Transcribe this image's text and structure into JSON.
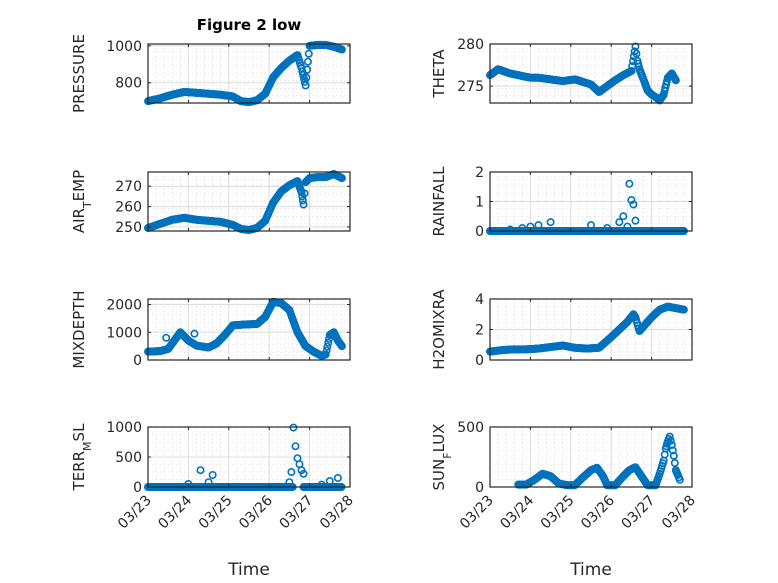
{
  "figure": {
    "title": "Figure 2 low",
    "marker_color": "#0072BD",
    "axis_color": "#262626",
    "grid_color": "#dcdcdc"
  },
  "chart_data": [
    {
      "type": "scatter",
      "id": "pressure",
      "title": "Figure 2 low",
      "ylabel": "PRESSURE",
      "ylabel_parts": [
        {
          "t": "PRESSURE"
        }
      ],
      "xlabel": "",
      "xlim": [
        0,
        5
      ],
      "ylim": [
        690,
        1010
      ],
      "yticks": [
        800,
        1000
      ],
      "xticks": [
        0,
        1,
        2,
        3,
        4,
        5
      ],
      "xticklabels": [],
      "grid": true,
      "minor_grid": true,
      "x": [
        0.0,
        0.3,
        0.6,
        0.9,
        1.2,
        1.5,
        1.8,
        2.1,
        2.3,
        2.5,
        2.7,
        2.9,
        3.1,
        3.3,
        3.5,
        3.7,
        3.8,
        3.9,
        4.0,
        4.2,
        4.4,
        4.6,
        4.8
      ],
      "y": [
        700,
        715,
        735,
        750,
        745,
        740,
        735,
        725,
        700,
        695,
        705,
        740,
        830,
        880,
        920,
        950,
        880,
        785,
        1000,
        1005,
        1005,
        995,
        980
      ],
      "data_range_days": [
        0.7,
        4.8
      ]
    },
    {
      "type": "scatter",
      "id": "theta",
      "ylabel": "THETA",
      "ylabel_parts": [
        {
          "t": "THETA"
        }
      ],
      "xlim": [
        0,
        5
      ],
      "ylim": [
        273,
        280
      ],
      "yticks": [
        275,
        280
      ],
      "xticks": [
        0,
        1,
        2,
        3,
        4,
        5
      ],
      "xticklabels": [],
      "grid": true,
      "minor_grid": true,
      "x": [
        0.0,
        0.2,
        0.5,
        0.8,
        1.0,
        1.2,
        1.5,
        1.8,
        2.1,
        2.3,
        2.5,
        2.7,
        2.9,
        3.1,
        3.3,
        3.5,
        3.6,
        3.65,
        3.7,
        3.8,
        3.9,
        4.0,
        4.1,
        4.2,
        4.3,
        4.4,
        4.5,
        4.6
      ],
      "y": [
        276.3,
        277.0,
        276.5,
        276.2,
        276.0,
        276.0,
        275.8,
        275.6,
        275.8,
        275.5,
        275.2,
        274.3,
        275.0,
        275.7,
        276.3,
        276.8,
        279.7,
        278.0,
        277.0,
        275.8,
        274.5,
        274.0,
        273.7,
        273.3,
        274.0,
        276.0,
        276.5,
        275.7
      ]
    },
    {
      "type": "scatter",
      "id": "air_temp",
      "ylabel": "AIR_TEMP",
      "ylabel_parts": [
        {
          "t": "AIR"
        },
        {
          "t": "T",
          "sub": true
        },
        {
          "t": "EMP"
        }
      ],
      "xlim": [
        0,
        5
      ],
      "ylim": [
        248,
        277
      ],
      "yticks": [
        250,
        260,
        270
      ],
      "xticks": [
        0,
        1,
        2,
        3,
        4,
        5
      ],
      "xticklabels": [],
      "grid": true,
      "minor_grid": true,
      "x": [
        0.0,
        0.3,
        0.6,
        0.9,
        1.2,
        1.5,
        1.8,
        2.1,
        2.3,
        2.5,
        2.7,
        2.9,
        3.1,
        3.3,
        3.5,
        3.7,
        3.8,
        3.85,
        3.9,
        4.0,
        4.2,
        4.4,
        4.6,
        4.8
      ],
      "y": [
        249.5,
        251.5,
        253.5,
        254.5,
        253.5,
        253.0,
        252.5,
        251.0,
        249.0,
        248.5,
        249.5,
        253.0,
        262.0,
        267.5,
        270.5,
        272.5,
        267.0,
        261.0,
        272.0,
        274.0,
        274.5,
        274.5,
        276.0,
        274.0
      ]
    },
    {
      "type": "scatter",
      "id": "rainfall",
      "ylabel": "RAINFALL",
      "ylabel_parts": [
        {
          "t": "RAINFALL"
        }
      ],
      "xlim": [
        0,
        5
      ],
      "ylim": [
        0,
        2
      ],
      "yticks": [
        0,
        1,
        2
      ],
      "xticks": [
        0,
        1,
        2,
        3,
        4,
        5
      ],
      "xticklabels": [],
      "grid": true,
      "minor_grid": true,
      "x": [
        0.5,
        0.8,
        1.0,
        1.2,
        1.5,
        2.5,
        2.9,
        3.2,
        3.3,
        3.4,
        3.45,
        3.5,
        3.55,
        3.6
      ],
      "y": [
        0.05,
        0.1,
        0.15,
        0.2,
        0.3,
        0.2,
        0.1,
        0.3,
        0.5,
        0.15,
        1.6,
        1.05,
        0.9,
        0.35
      ],
      "baseline_value": 0
    },
    {
      "type": "scatter",
      "id": "mixdepth",
      "ylabel": "MIXDEPTH",
      "ylabel_parts": [
        {
          "t": "MIXDEPTH"
        }
      ],
      "xlim": [
        0,
        5
      ],
      "ylim": [
        0,
        2200
      ],
      "yticks": [
        0,
        1000,
        2000
      ],
      "xticks": [
        0,
        1,
        2,
        3,
        4,
        5
      ],
      "xticklabels": [],
      "grid": true,
      "minor_grid": true,
      "x": [
        0.0,
        0.3,
        0.5,
        0.8,
        1.0,
        1.2,
        1.5,
        1.7,
        1.9,
        2.1,
        2.4,
        2.7,
        2.9,
        3.1,
        3.3,
        3.5,
        3.7,
        3.9,
        4.1,
        4.3,
        4.4,
        4.5,
        4.6,
        4.7,
        4.8
      ],
      "y": [
        300,
        320,
        400,
        1000,
        700,
        520,
        450,
        600,
        900,
        1250,
        1280,
        1300,
        1550,
        2100,
        2050,
        1800,
        1000,
        500,
        300,
        150,
        200,
        900,
        1000,
        700,
        500
      ],
      "outliers": [
        [
          0.45,
          800
        ],
        [
          1.15,
          950
        ]
      ]
    },
    {
      "type": "scatter",
      "id": "h2omixra",
      "ylabel": "H2OMIXRA",
      "ylabel_parts": [
        {
          "t": "H2OMIXRA"
        }
      ],
      "xlim": [
        0,
        5
      ],
      "ylim": [
        0,
        4
      ],
      "yticks": [
        0,
        2,
        4
      ],
      "xticks": [
        0,
        1,
        2,
        3,
        4,
        5
      ],
      "xticklabels": [],
      "grid": true,
      "minor_grid": true,
      "x": [
        0.0,
        0.3,
        0.6,
        0.9,
        1.2,
        1.5,
        1.8,
        2.1,
        2.4,
        2.7,
        3.0,
        3.2,
        3.4,
        3.55,
        3.6,
        3.7,
        3.8,
        4.0,
        4.2,
        4.4,
        4.6,
        4.8
      ],
      "y": [
        0.55,
        0.65,
        0.7,
        0.7,
        0.75,
        0.85,
        0.95,
        0.8,
        0.75,
        0.8,
        1.5,
        2.0,
        2.5,
        3.0,
        2.8,
        1.9,
        2.2,
        2.8,
        3.3,
        3.5,
        3.4,
        3.3
      ]
    },
    {
      "type": "scatter",
      "id": "terr_msl",
      "ylabel": "TERR_MSL",
      "ylabel_parts": [
        {
          "t": "TERR"
        },
        {
          "t": "M",
          "sub": true
        },
        {
          "t": "SL"
        }
      ],
      "xlabel": "Time",
      "xlim": [
        0,
        5
      ],
      "ylim": [
        0,
        1000
      ],
      "yticks": [
        0,
        500,
        1000
      ],
      "xticks": [
        0,
        1,
        2,
        3,
        4,
        5
      ],
      "xticklabels": [
        "03/23",
        "03/24",
        "03/25",
        "03/26",
        "03/27",
        "03/28"
      ],
      "grid": true,
      "minor_grid": true,
      "x": [
        1.0,
        1.3,
        1.5,
        1.6,
        3.5,
        3.55,
        3.6,
        3.65,
        3.7,
        3.75,
        3.8,
        3.85,
        4.3,
        4.5,
        4.7
      ],
      "y": [
        50,
        280,
        80,
        200,
        80,
        250,
        990,
        680,
        480,
        380,
        280,
        220,
        40,
        100,
        150
      ],
      "baseline_value": 0
    },
    {
      "type": "scatter",
      "id": "sun_flux",
      "ylabel": "SUN_FLUX",
      "ylabel_parts": [
        {
          "t": "SUN"
        },
        {
          "t": "F",
          "sub": true
        },
        {
          "t": "LUX"
        }
      ],
      "xlabel": "Time",
      "xlim": [
        0,
        5
      ],
      "ylim": [
        0,
        500
      ],
      "yticks": [
        0,
        500
      ],
      "xticks": [
        0,
        1,
        2,
        3,
        4,
        5
      ],
      "xticklabels": [
        "03/23",
        "03/24",
        "03/25",
        "03/26",
        "03/27",
        "03/28"
      ],
      "grid": true,
      "minor_grid": true,
      "x": [
        0.7,
        0.9,
        1.1,
        1.3,
        1.5,
        1.7,
        1.9,
        2.1,
        2.3,
        2.5,
        2.65,
        2.8,
        2.9,
        3.1,
        3.3,
        3.45,
        3.6,
        3.75,
        3.9,
        4.1,
        4.2,
        4.3,
        4.35,
        4.4,
        4.45,
        4.5,
        4.55,
        4.6,
        4.65,
        4.7
      ],
      "y": [
        20,
        20,
        60,
        110,
        90,
        30,
        15,
        15,
        80,
        140,
        160,
        90,
        15,
        15,
        90,
        140,
        165,
        90,
        15,
        15,
        110,
        220,
        320,
        380,
        420,
        350,
        260,
        140,
        100,
        60
      ]
    }
  ]
}
